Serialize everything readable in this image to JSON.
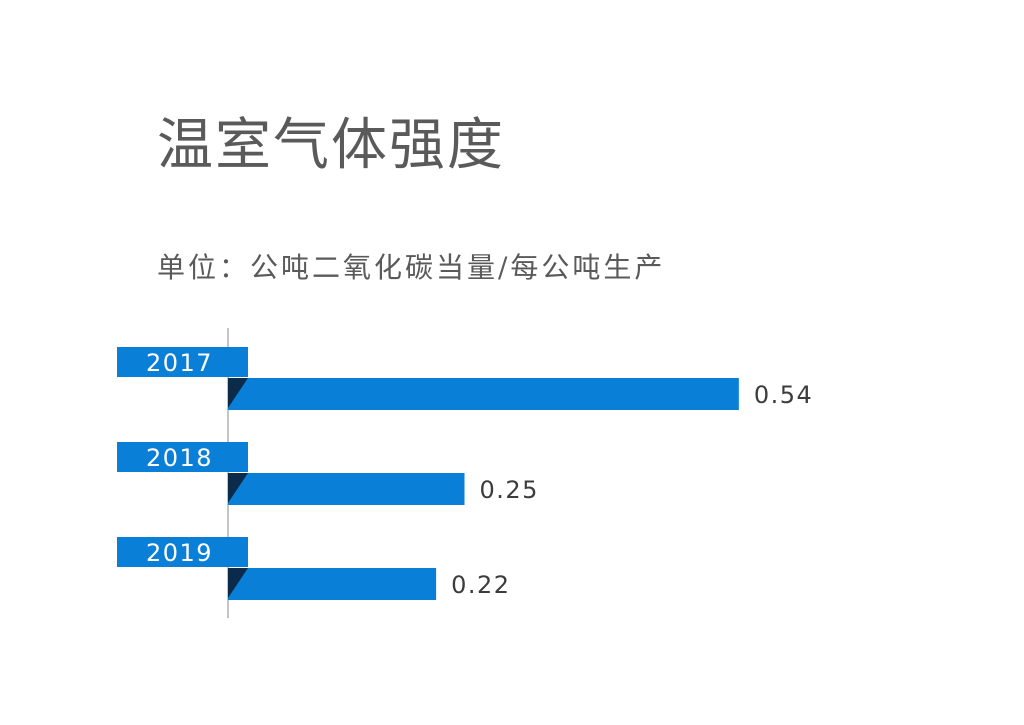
{
  "title": "温室气体强度",
  "subtitle": "单位：公吨二氧化碳当量/每公吨生产",
  "colors": {
    "bar": "#0a7fd8",
    "fold": "#0c2a4a",
    "axis": "#8a8a8a",
    "text": "#5a5a5a"
  },
  "chart_data": {
    "type": "bar",
    "orientation": "horizontal",
    "categories": [
      "2017",
      "2018",
      "2019"
    ],
    "values": [
      0.54,
      0.25,
      0.22
    ],
    "value_labels": [
      "0.54",
      "0.25",
      "0.22"
    ],
    "title": "温室气体强度",
    "subtitle": "单位：公吨二氧化碳当量/每公吨生产",
    "xlabel": "",
    "ylabel": "",
    "grid": false,
    "legend": "none"
  }
}
